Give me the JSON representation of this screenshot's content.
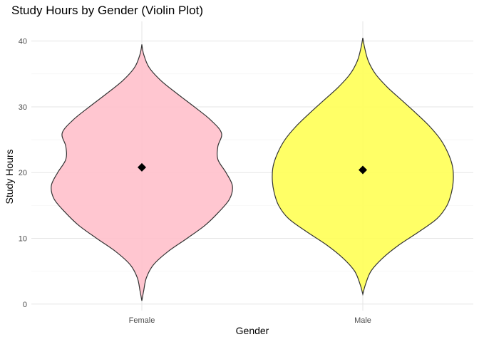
{
  "chart_data": {
    "type": "violin",
    "title": "Study Hours by Gender (Violin Plot)",
    "xlabel": "Gender",
    "ylabel": "Study Hours",
    "categories": [
      "Female",
      "Male"
    ],
    "ylim": [
      -1,
      43
    ],
    "yticks": [
      0,
      10,
      20,
      30,
      40
    ],
    "grid": true,
    "legend": "none",
    "series": [
      {
        "category": "Female",
        "fill": "#ffc0cb",
        "min": 0.5,
        "max": 39.5,
        "mean": 20.8,
        "density_profile": [
          [
            0.5,
            0.0
          ],
          [
            2.0,
            0.02
          ],
          [
            4.0,
            0.05
          ],
          [
            6.0,
            0.13
          ],
          [
            8.0,
            0.29
          ],
          [
            10.0,
            0.5
          ],
          [
            12.0,
            0.7
          ],
          [
            14.0,
            0.85
          ],
          [
            16.0,
            0.97
          ],
          [
            18.0,
            1.0
          ],
          [
            20.0,
            0.93
          ],
          [
            22.0,
            0.84
          ],
          [
            24.0,
            0.84
          ],
          [
            26.0,
            0.88
          ],
          [
            28.0,
            0.76
          ],
          [
            30.0,
            0.58
          ],
          [
            32.0,
            0.39
          ],
          [
            34.0,
            0.21
          ],
          [
            36.0,
            0.08
          ],
          [
            38.0,
            0.02
          ],
          [
            39.5,
            0.0
          ]
        ]
      },
      {
        "category": "Male",
        "fill": "#ffff55",
        "min": 1.5,
        "max": 40.5,
        "mean": 20.4,
        "density_profile": [
          [
            1.5,
            0.0
          ],
          [
            3.0,
            0.03
          ],
          [
            5.0,
            0.09
          ],
          [
            7.0,
            0.22
          ],
          [
            9.0,
            0.4
          ],
          [
            11.0,
            0.62
          ],
          [
            13.0,
            0.82
          ],
          [
            15.0,
            0.93
          ],
          [
            17.0,
            0.98
          ],
          [
            19.0,
            1.0
          ],
          [
            21.0,
            0.99
          ],
          [
            23.0,
            0.94
          ],
          [
            25.0,
            0.86
          ],
          [
            27.0,
            0.74
          ],
          [
            29.0,
            0.59
          ],
          [
            31.0,
            0.43
          ],
          [
            33.0,
            0.27
          ],
          [
            35.0,
            0.14
          ],
          [
            37.0,
            0.06
          ],
          [
            39.0,
            0.02
          ],
          [
            40.5,
            0.0
          ]
        ]
      }
    ]
  }
}
